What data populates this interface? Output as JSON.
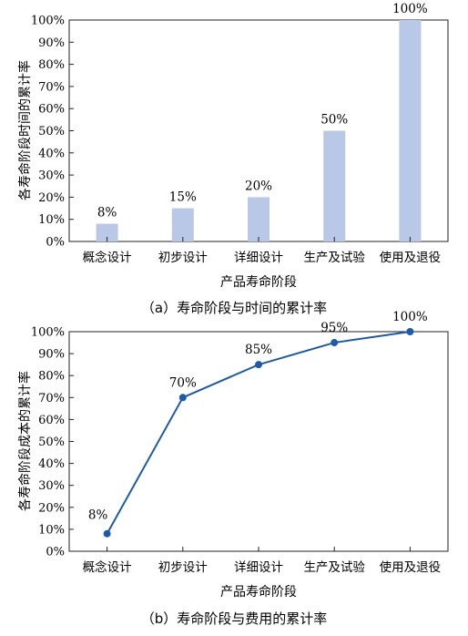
{
  "chart_data": [
    {
      "type": "bar",
      "caption": "（a）寿命阶段与时间的累计率",
      "xlabel": "产品寿命阶段",
      "ylabel": "各寿命阶段时间的累计率",
      "categories": [
        "概念设计",
        "初步设计",
        "详细设计",
        "生产及试验",
        "使用及退役"
      ],
      "values": [
        8,
        15,
        20,
        50,
        100
      ],
      "data_labels": [
        "8%",
        "15%",
        "20%",
        "50%",
        "100%"
      ],
      "ylim": [
        0,
        100
      ],
      "yticks": [
        "0%",
        "10%",
        "20%",
        "30%",
        "40%",
        "50%",
        "60%",
        "70%",
        "80%",
        "90%",
        "100%"
      ],
      "grid": false,
      "bar_color": "#b9c8e6"
    },
    {
      "type": "line",
      "caption": "（b）寿命阶段与费用的累计率",
      "xlabel": "产品寿命阶段",
      "ylabel": "各寿命阶段成本的累计率",
      "categories": [
        "概念设计",
        "初步设计",
        "详细设计",
        "生产及试验",
        "使用及退役"
      ],
      "values": [
        8,
        70,
        85,
        95,
        100
      ],
      "data_labels": [
        "8%",
        "70%",
        "85%",
        "95%",
        "100%"
      ],
      "ylim": [
        0,
        100
      ],
      "yticks": [
        "0%",
        "10%",
        "20%",
        "30%",
        "40%",
        "50%",
        "60%",
        "70%",
        "80%",
        "90%",
        "100%"
      ],
      "grid": false,
      "line_color": "#1f5aa6"
    }
  ]
}
